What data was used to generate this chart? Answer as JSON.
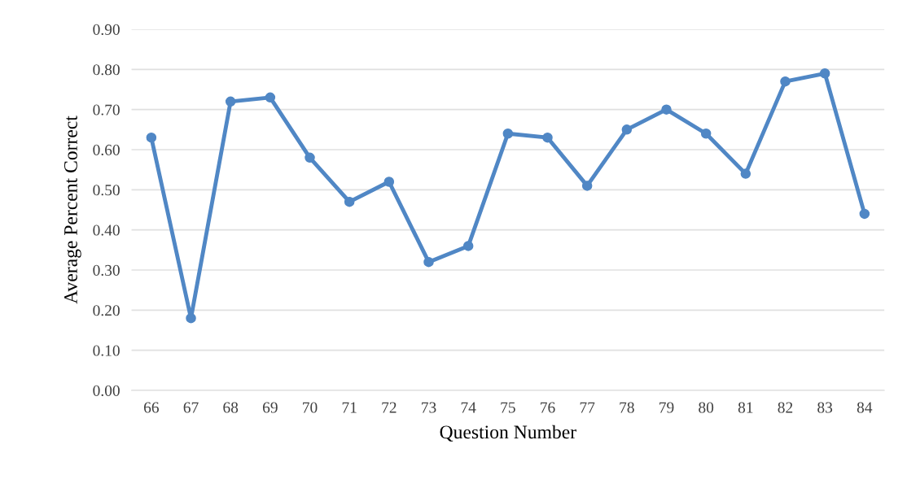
{
  "chart_data": {
    "type": "line",
    "xlabel": "Question Number",
    "ylabel": "Average Percent Correct",
    "categories": [
      "66",
      "67",
      "68",
      "69",
      "70",
      "71",
      "72",
      "73",
      "74",
      "75",
      "76",
      "77",
      "78",
      "79",
      "80",
      "81",
      "82",
      "83",
      "84"
    ],
    "series": [
      {
        "color": "#5087c5",
        "values": [
          0.63,
          0.18,
          0.72,
          0.73,
          0.58,
          0.47,
          0.52,
          0.32,
          0.36,
          0.64,
          0.63,
          0.51,
          0.65,
          0.7,
          0.64,
          0.54,
          0.77,
          0.79,
          0.44
        ]
      }
    ],
    "ylim": [
      0,
      0.9
    ],
    "yticks": [
      {
        "value": 0,
        "label": "0.00"
      },
      {
        "value": 0.1,
        "label": "0.10"
      },
      {
        "value": 0.2,
        "label": "0.20"
      },
      {
        "value": 0.3,
        "label": "0.30"
      },
      {
        "value": 0.4,
        "label": "0.40"
      },
      {
        "value": 0.5,
        "label": "0.50"
      },
      {
        "value": 0.6,
        "label": "0.60"
      },
      {
        "value": 0.7,
        "label": "0.70"
      },
      {
        "value": 0.8,
        "label": "0.80"
      },
      {
        "value": 0.9,
        "label": "0.90"
      }
    ],
    "grid": "y",
    "marker": "circle",
    "line_style": "solid"
  }
}
